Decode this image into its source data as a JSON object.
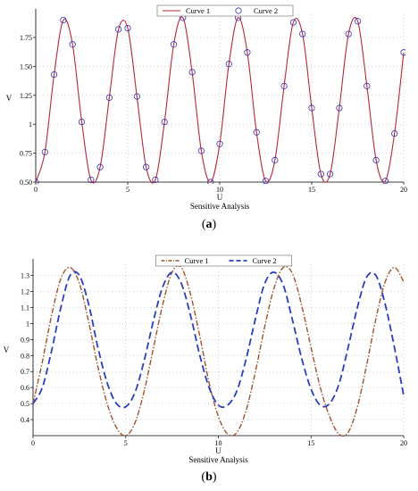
{
  "chart_data": [
    {
      "type": "line",
      "panel_label": "(a)",
      "xlabel": "U",
      "xlabel2": "Sensitive Analysis",
      "ylabel": "V",
      "xlim": [
        0,
        20
      ],
      "ylim": [
        0.5,
        1.95
      ],
      "xticks": [
        0,
        5,
        10,
        15,
        20
      ],
      "yticks": [
        0.5,
        0.75,
        1,
        1.25,
        1.5,
        1.75
      ],
      "ytick_labels": [
        "0.50",
        "0.75",
        "1",
        "1.25",
        "1.50",
        "1.75"
      ],
      "grid": true,
      "legend": "top-center",
      "series": [
        {
          "name": "Curve 1",
          "style": "solid",
          "color": "#b5283a",
          "x": [
            0,
            0.5,
            1,
            1.5,
            2,
            2.5,
            3,
            3.5,
            4,
            4.5,
            5,
            5.5,
            6,
            6.5,
            7,
            7.5,
            8,
            8.5,
            9,
            9.5,
            10,
            10.5,
            11,
            11.5,
            12,
            12.5,
            13,
            13.5,
            14,
            14.5,
            15,
            15.5,
            16,
            16.5,
            17,
            17.5,
            18,
            18.5,
            19,
            19.5,
            20
          ],
          "y": [
            0.5,
            0.76,
            1.43,
            1.9,
            1.69,
            1.02,
            0.52,
            0.63,
            1.23,
            1.82,
            1.83,
            1.24,
            0.63,
            0.52,
            1.02,
            1.69,
            1.92,
            1.45,
            0.77,
            0.5,
            0.83,
            1.52,
            1.92,
            1.62,
            0.93,
            0.51,
            0.69,
            1.33,
            1.88,
            1.78,
            1.14,
            0.57,
            0.57,
            1.14,
            1.78,
            1.89,
            1.33,
            0.69,
            0.51,
            0.92,
            1.62
          ]
        },
        {
          "name": "Curve 2",
          "style": "circle-markers",
          "color": "#3232b4",
          "x": [
            0,
            0.5,
            1,
            1.5,
            2,
            2.5,
            3,
            3.5,
            4,
            4.5,
            5,
            5.5,
            6,
            6.5,
            7,
            7.5,
            8,
            8.5,
            9,
            9.5,
            10,
            10.5,
            11,
            11.5,
            12,
            12.5,
            13,
            13.5,
            14,
            14.5,
            15,
            15.5,
            16,
            16.5,
            17,
            17.5,
            18,
            18.5,
            19,
            19.5,
            20
          ],
          "y": [
            0.5,
            0.76,
            1.43,
            1.9,
            1.69,
            1.02,
            0.52,
            0.63,
            1.23,
            1.82,
            1.83,
            1.24,
            0.63,
            0.52,
            1.02,
            1.69,
            1.92,
            1.45,
            0.77,
            0.5,
            0.83,
            1.52,
            1.92,
            1.62,
            0.93,
            0.51,
            0.69,
            1.33,
            1.88,
            1.78,
            1.14,
            0.57,
            0.57,
            1.14,
            1.78,
            1.89,
            1.33,
            0.69,
            0.51,
            0.92,
            1.62
          ]
        }
      ]
    },
    {
      "type": "line",
      "panel_label": "(b)",
      "xlabel": "U",
      "xlabel2": "Sensitive Analysis",
      "ylabel": "V",
      "xlim": [
        0,
        20
      ],
      "ylim": [
        0.3,
        1.37
      ],
      "xticks": [
        0,
        5,
        10,
        15,
        20
      ],
      "yticks": [
        0.4,
        0.5,
        0.6,
        0.7,
        0.8,
        0.9,
        1,
        1.1,
        1.2,
        1.3
      ],
      "ytick_labels": [
        "0.4",
        "0.5",
        "0.6",
        "0.7",
        "0.8",
        "0.9",
        "1",
        "1.1",
        "1.2",
        "1.3"
      ],
      "grid": true,
      "legend": "top-center",
      "series": [
        {
          "name": "Curve 1",
          "style": "dash-dot",
          "color": "#a0522d",
          "x": [
            0,
            0.5,
            1,
            1.5,
            2,
            2.5,
            3,
            3.5,
            4,
            4.5,
            5,
            5.5,
            6,
            6.5,
            7,
            7.5,
            8,
            8.5,
            9,
            9.5,
            10,
            10.5,
            11,
            11.5,
            12,
            12.5,
            13,
            13.5,
            14,
            14.5,
            15,
            15.5,
            16,
            16.5,
            17,
            17.5,
            18,
            18.5,
            19,
            19.5,
            20
          ],
          "y": [
            0.5,
            0.76,
            1.05,
            1.28,
            1.35,
            1.25,
            1.01,
            0.73,
            0.5,
            0.35,
            0.3,
            0.38,
            0.58,
            0.85,
            1.12,
            1.32,
            1.35,
            1.18,
            0.92,
            0.63,
            0.42,
            0.31,
            0.32,
            0.46,
            0.7,
            0.98,
            1.22,
            1.35,
            1.31,
            1.11,
            0.85,
            0.6,
            0.42,
            0.31,
            0.32,
            0.48,
            0.74,
            1.03,
            1.26,
            1.35,
            1.26
          ]
        },
        {
          "name": "Curve 2",
          "style": "dashed",
          "color": "#2a3fbf",
          "x": [
            0,
            0.5,
            1,
            1.5,
            2,
            2.5,
            3,
            3.5,
            4,
            4.5,
            5,
            5.5,
            6,
            6.5,
            7,
            7.5,
            8,
            8.5,
            9,
            9.5,
            10,
            10.5,
            11,
            11.5,
            12,
            12.5,
            13,
            13.5,
            14,
            14.5,
            15,
            15.5,
            16,
            16.5,
            17,
            17.5,
            18,
            18.5,
            19,
            19.5,
            20
          ],
          "y": [
            0.5,
            0.6,
            0.83,
            1.1,
            1.3,
            1.3,
            1.12,
            0.85,
            0.63,
            0.5,
            0.48,
            0.57,
            0.77,
            1.02,
            1.23,
            1.32,
            1.25,
            1.05,
            0.8,
            0.6,
            0.49,
            0.49,
            0.58,
            0.78,
            1.03,
            1.25,
            1.32,
            1.24,
            1.02,
            0.78,
            0.59,
            0.49,
            0.5,
            0.62,
            0.85,
            1.1,
            1.29,
            1.3,
            1.12,
            0.85,
            0.55
          ]
        }
      ]
    }
  ]
}
